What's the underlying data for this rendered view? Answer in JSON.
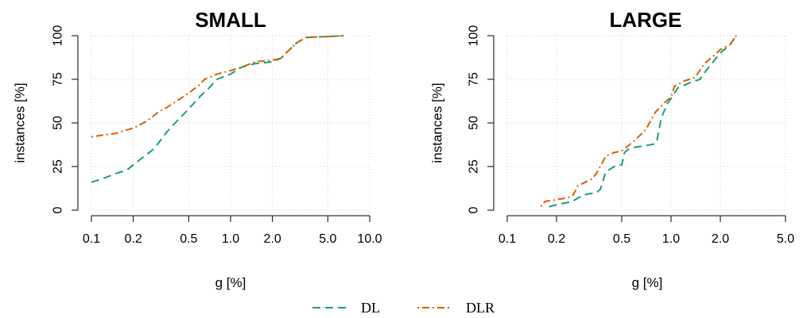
{
  "chart_data": [
    {
      "type": "line",
      "title": "SMALL",
      "xlabel": "g [%]",
      "ylabel": "instances [%]",
      "xscale": "log",
      "xlim": [
        0.1,
        10.0
      ],
      "ylim": [
        0,
        100
      ],
      "xticks": [
        "0.1",
        "0.2",
        "0.5",
        "1.0",
        "2.0",
        "5.0",
        "10.0"
      ],
      "yticks": [
        "0",
        "25",
        "50",
        "75",
        "100"
      ],
      "grid": true,
      "series": [
        {
          "name": "DL",
          "color": "#1b9e77",
          "dash": "dashed",
          "x": [
            0.1,
            0.12,
            0.15,
            0.18,
            0.2,
            0.25,
            0.28,
            0.3,
            0.35,
            0.4,
            0.5,
            0.6,
            0.7,
            0.8,
            1.0,
            1.2,
            1.5,
            2.0,
            2.3,
            2.5,
            3.0,
            3.5,
            5.0,
            6.5
          ],
          "y": [
            16,
            18,
            21,
            23,
            26,
            32,
            35,
            38,
            45,
            50,
            58,
            65,
            70,
            75,
            78,
            82,
            84,
            85,
            87,
            90,
            96,
            99,
            99.5,
            100
          ]
        },
        {
          "name": "DLR",
          "color": "#d95f02",
          "dash": "dotdash",
          "x": [
            0.1,
            0.12,
            0.15,
            0.18,
            0.2,
            0.25,
            0.3,
            0.35,
            0.4,
            0.5,
            0.6,
            0.65,
            0.7,
            0.8,
            1.0,
            1.2,
            1.5,
            2.0,
            2.3,
            2.5,
            3.0,
            3.5,
            5.0,
            6.5
          ],
          "y": [
            42,
            43,
            44,
            46,
            47,
            51,
            56,
            59,
            62,
            67,
            72,
            75,
            76,
            78,
            80,
            82,
            85,
            86,
            87,
            90,
            96,
            99,
            99.5,
            100
          ]
        }
      ]
    },
    {
      "type": "line",
      "title": "LARGE",
      "xlabel": "g [%]",
      "ylabel": "instances [%]",
      "xscale": "log",
      "xlim": [
        0.1,
        5.0
      ],
      "ylim": [
        0,
        100
      ],
      "xticks": [
        "0.1",
        "0.2",
        "0.5",
        "1.0",
        "2.0",
        "5.0"
      ],
      "yticks": [
        "0",
        "25",
        "50",
        "75",
        "100"
      ],
      "grid": true,
      "series": [
        {
          "name": "DL",
          "color": "#1b9e77",
          "dash": "dashed",
          "x": [
            0.18,
            0.2,
            0.25,
            0.27,
            0.3,
            0.35,
            0.37,
            0.4,
            0.45,
            0.5,
            0.52,
            0.55,
            0.6,
            0.7,
            0.8,
            0.82,
            0.87,
            0.9,
            0.95,
            1.0,
            1.1,
            1.3,
            1.5,
            1.7,
            2.0,
            2.3,
            2.5
          ],
          "y": [
            2,
            3,
            5,
            7,
            9,
            10,
            12,
            22,
            25,
            26,
            33,
            35,
            36,
            37,
            38,
            40,
            52,
            56,
            61,
            64,
            70,
            73,
            75,
            82,
            90,
            95,
            100
          ]
        },
        {
          "name": "DLR",
          "color": "#d95f02",
          "dash": "dotdash",
          "x": [
            0.16,
            0.17,
            0.2,
            0.23,
            0.25,
            0.27,
            0.3,
            0.33,
            0.35,
            0.38,
            0.4,
            0.45,
            0.5,
            0.55,
            0.6,
            0.7,
            0.8,
            0.9,
            1.0,
            1.05,
            1.2,
            1.4,
            1.6,
            1.8,
            2.0,
            2.3,
            2.5
          ],
          "y": [
            2,
            5,
            6,
            7,
            8,
            14,
            16,
            18,
            21,
            27,
            31,
            33,
            34,
            37,
            40,
            46,
            56,
            61,
            65,
            71,
            74,
            76,
            84,
            88,
            92,
            95,
            100
          ]
        }
      ]
    }
  ],
  "legend": {
    "placement": "bottom-center",
    "items": [
      {
        "label": "DL",
        "color": "#1b9e77",
        "dash": "dashed"
      },
      {
        "label": "DLR",
        "color": "#d95f02",
        "dash": "dotdash"
      }
    ]
  }
}
